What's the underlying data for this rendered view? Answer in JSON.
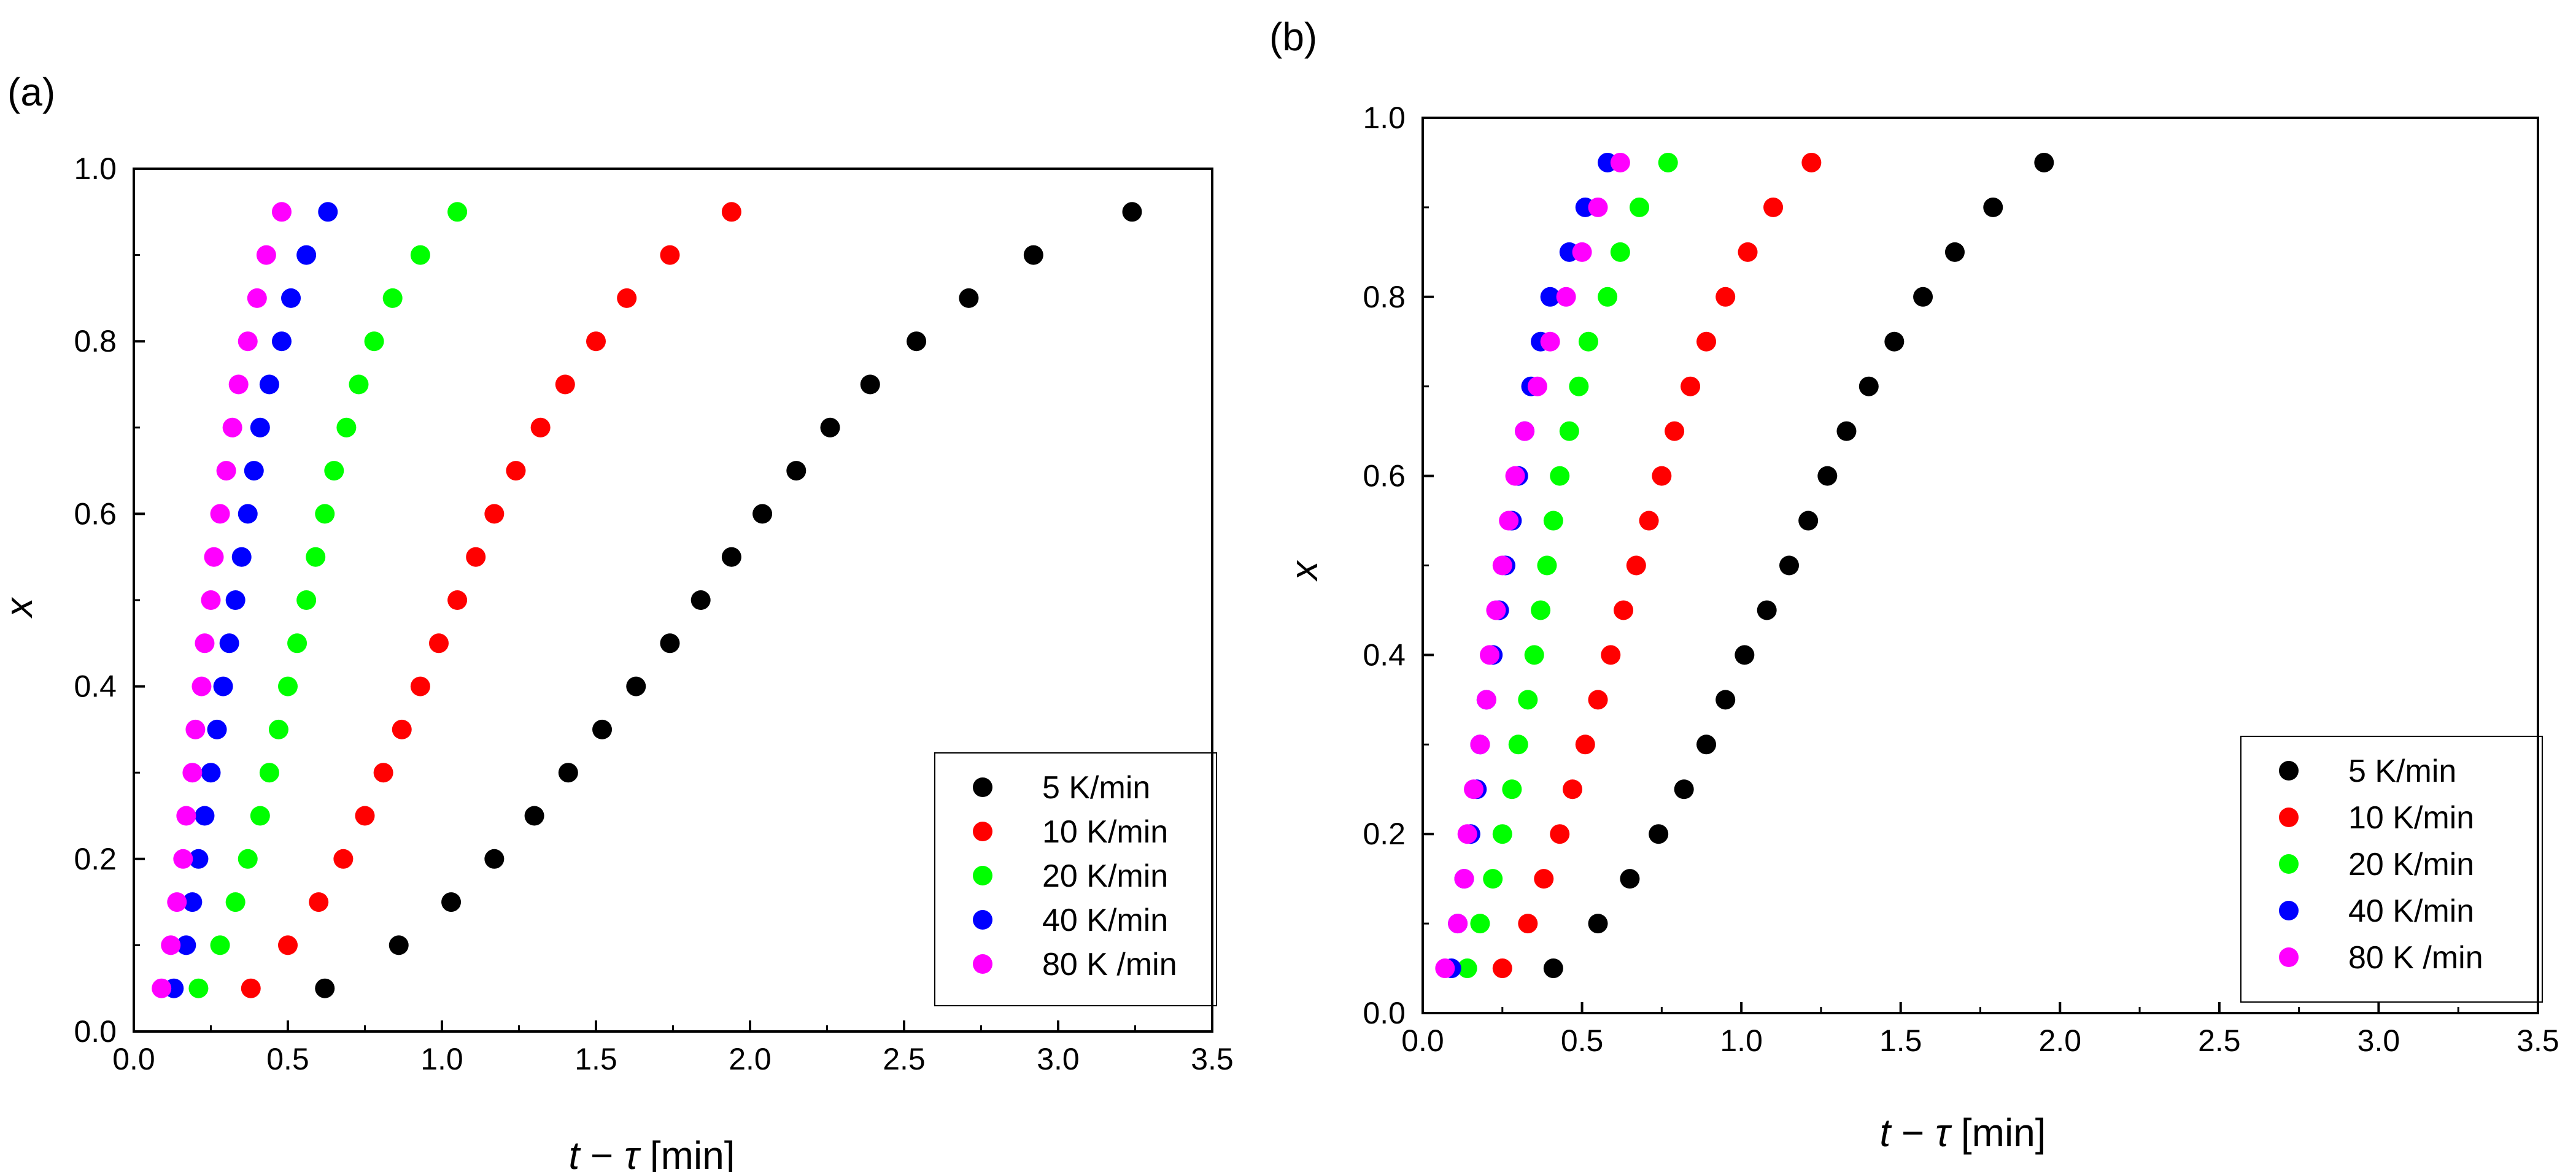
{
  "chart_data": [
    {
      "panel_label": "(a)",
      "type": "scatter",
      "xlabel_italic": "t",
      "xlabel_op": " − ",
      "xlabel_greek": "τ",
      "xlabel_unit": " [min]",
      "ylabel": "x",
      "xlim": [
        0,
        3.5
      ],
      "ylim": [
        0,
        1.0
      ],
      "xticks": [
        "0.0",
        "0.5",
        "1.0",
        "1.5",
        "2.0",
        "2.5",
        "3.0",
        "3.5"
      ],
      "yticks": [
        "0.0",
        "0.2",
        "0.4",
        "0.6",
        "0.8",
        "1.0"
      ],
      "legend_position": "bottom-right",
      "y": [
        0.05,
        0.1,
        0.15,
        0.2,
        0.25,
        0.3,
        0.35,
        0.4,
        0.45,
        0.5,
        0.55,
        0.6,
        0.65,
        0.7,
        0.75,
        0.8,
        0.85,
        0.9,
        0.95
      ],
      "series": [
        {
          "name": "5 K/min",
          "color": "#000000",
          "x": [
            0.62,
            0.86,
            1.03,
            1.17,
            1.3,
            1.41,
            1.52,
            1.63,
            1.74,
            1.84,
            1.94,
            2.04,
            2.15,
            2.26,
            2.39,
            2.54,
            2.71,
            2.92,
            3.24
          ]
        },
        {
          "name": "10 K/min",
          "color": "#ff0000",
          "x": [
            0.38,
            0.5,
            0.6,
            0.68,
            0.75,
            0.81,
            0.87,
            0.93,
            0.99,
            1.05,
            1.11,
            1.17,
            1.24,
            1.32,
            1.4,
            1.5,
            1.6,
            1.74,
            1.94
          ]
        },
        {
          "name": "20 K/min",
          "color": "#00ff00",
          "x": [
            0.21,
            0.28,
            0.33,
            0.37,
            0.41,
            0.44,
            0.47,
            0.5,
            0.53,
            0.56,
            0.59,
            0.62,
            0.65,
            0.69,
            0.73,
            0.78,
            0.84,
            0.93,
            1.05
          ]
        },
        {
          "name": "40 K/min",
          "color": "#0000ff",
          "x": [
            0.13,
            0.17,
            0.19,
            0.21,
            0.23,
            0.25,
            0.27,
            0.29,
            0.31,
            0.33,
            0.35,
            0.37,
            0.39,
            0.41,
            0.44,
            0.48,
            0.51,
            0.56,
            0.63
          ]
        },
        {
          "name": "80 K /min",
          "color": "#ff00ff",
          "x": [
            0.09,
            0.12,
            0.14,
            0.16,
            0.17,
            0.19,
            0.2,
            0.22,
            0.23,
            0.25,
            0.26,
            0.28,
            0.3,
            0.32,
            0.34,
            0.37,
            0.4,
            0.43,
            0.48
          ]
        }
      ]
    },
    {
      "panel_label": "(b)",
      "type": "scatter",
      "xlabel_italic": "t",
      "xlabel_op": " − ",
      "xlabel_greek": "τ",
      "xlabel_unit": " [min]",
      "ylabel": "x",
      "xlim": [
        0,
        3.5
      ],
      "ylim": [
        0,
        1.0
      ],
      "xticks": [
        "0.0",
        "0.5",
        "1.0",
        "1.5",
        "2.0",
        "2.5",
        "3.0",
        "3.5"
      ],
      "yticks": [
        "0.0",
        "0.2",
        "0.4",
        "0.6",
        "0.8",
        "1.0"
      ],
      "legend_position": "bottom-right",
      "y": [
        0.05,
        0.1,
        0.15,
        0.2,
        0.25,
        0.3,
        0.35,
        0.4,
        0.45,
        0.5,
        0.55,
        0.6,
        0.65,
        0.7,
        0.75,
        0.8,
        0.85,
        0.9,
        0.95
      ],
      "series": [
        {
          "name": "5 K/min",
          "color": "#000000",
          "x": [
            0.41,
            0.55,
            0.65,
            0.74,
            0.82,
            0.89,
            0.95,
            1.01,
            1.08,
            1.15,
            1.21,
            1.27,
            1.33,
            1.4,
            1.48,
            1.57,
            1.67,
            1.79,
            1.95
          ]
        },
        {
          "name": "10 K/min",
          "color": "#ff0000",
          "x": [
            0.25,
            0.33,
            0.38,
            0.43,
            0.47,
            0.51,
            0.55,
            0.59,
            0.63,
            0.67,
            0.71,
            0.75,
            0.79,
            0.84,
            0.89,
            0.95,
            1.02,
            1.1,
            1.22
          ]
        },
        {
          "name": "20 K/min",
          "color": "#00ff00",
          "x": [
            0.14,
            0.18,
            0.22,
            0.25,
            0.28,
            0.3,
            0.33,
            0.35,
            0.37,
            0.39,
            0.41,
            0.43,
            0.46,
            0.49,
            0.52,
            0.58,
            0.62,
            0.68,
            0.77
          ]
        },
        {
          "name": "40 K/min",
          "color": "#0000ff",
          "x": [
            0.09,
            0.11,
            0.13,
            0.15,
            0.17,
            0.18,
            0.2,
            0.22,
            0.24,
            0.26,
            0.28,
            0.3,
            0.32,
            0.34,
            0.37,
            0.4,
            0.46,
            0.51,
            0.58
          ]
        },
        {
          "name": "80 K /min",
          "color": "#ff00ff",
          "x": [
            0.07,
            0.11,
            0.13,
            0.14,
            0.16,
            0.18,
            0.2,
            0.21,
            0.23,
            0.25,
            0.27,
            0.29,
            0.32,
            0.36,
            0.4,
            0.45,
            0.5,
            0.55,
            0.62
          ]
        }
      ]
    }
  ]
}
